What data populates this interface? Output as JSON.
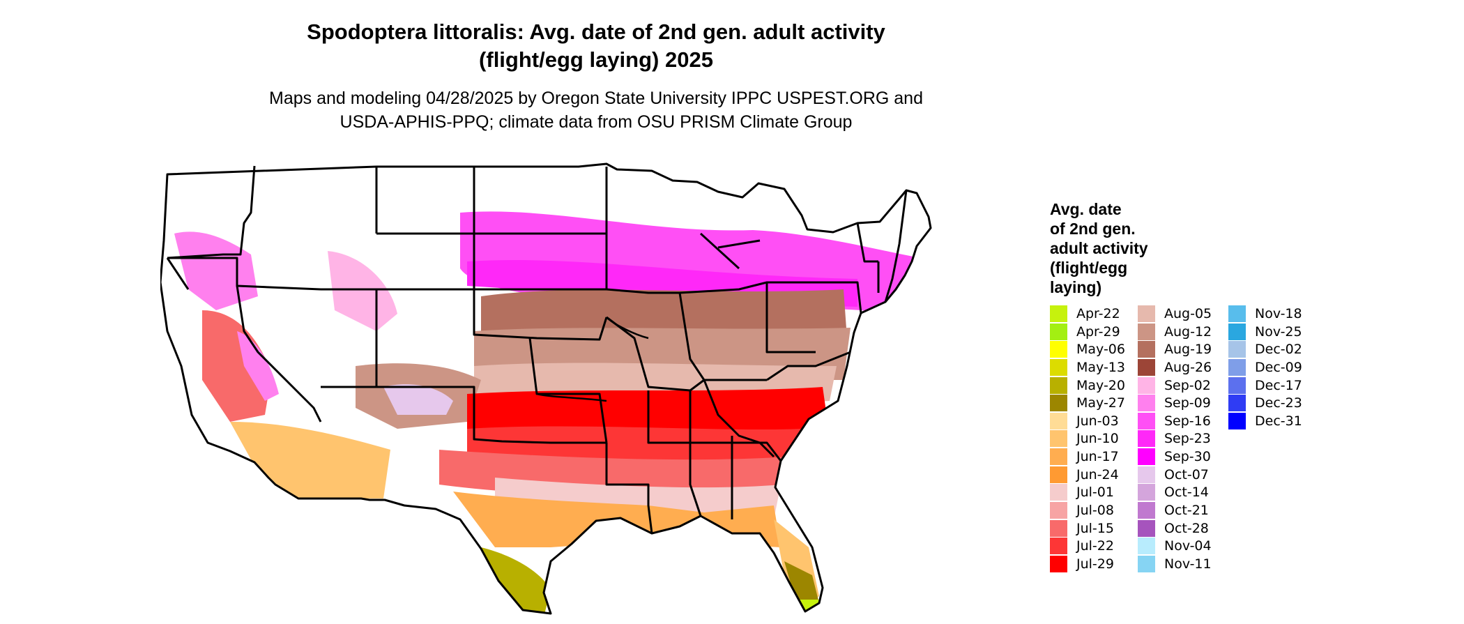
{
  "title": {
    "line1": "Spodoptera littoralis: Avg. date of 2nd gen. adult activity",
    "line2": "(flight/egg laying) 2025"
  },
  "subtitle": {
    "line1": "Maps and modeling 04/28/2025 by Oregon State University IPPC USPEST.ORG and",
    "line2": "USDA-APHIS-PPQ; climate data from OSU PRISM Climate Group"
  },
  "legend": {
    "title_lines": [
      "Avg. date",
      "of 2nd gen.",
      "adult activity",
      "(flight/egg",
      "laying)"
    ],
    "columns": [
      [
        {
          "label": "Apr-22",
          "color": "#c6f20d"
        },
        {
          "label": "Apr-29",
          "color": "#a3ef12"
        },
        {
          "label": "May-06",
          "color": "#ffff00"
        },
        {
          "label": "May-13",
          "color": "#dcdc00"
        },
        {
          "label": "May-20",
          "color": "#b8b000"
        },
        {
          "label": "May-27",
          "color": "#9c8600"
        },
        {
          "label": "Jun-03",
          "color": "#ffdc96"
        },
        {
          "label": "Jun-10",
          "color": "#ffc46e"
        },
        {
          "label": "Jun-17",
          "color": "#ffad50"
        },
        {
          "label": "Jun-24",
          "color": "#ff9a32"
        },
        {
          "label": "Jul-01",
          "color": "#f5cccc"
        },
        {
          "label": "Jul-08",
          "color": "#f7a4a4"
        },
        {
          "label": "Jul-15",
          "color": "#f86a6a"
        },
        {
          "label": "Jul-22",
          "color": "#fd3636"
        },
        {
          "label": "Jul-29",
          "color": "#ff0000"
        }
      ],
      [
        {
          "label": "Aug-05",
          "color": "#e6b9ad"
        },
        {
          "label": "Aug-12",
          "color": "#cc9585"
        },
        {
          "label": "Aug-19",
          "color": "#b4705f"
        },
        {
          "label": "Aug-26",
          "color": "#9c4537"
        },
        {
          "label": "Sep-02",
          "color": "#ffb4e6"
        },
        {
          "label": "Sep-09",
          "color": "#ff80ee"
        },
        {
          "label": "Sep-16",
          "color": "#ff4ff5"
        },
        {
          "label": "Sep-23",
          "color": "#ff28f8"
        },
        {
          "label": "Sep-30",
          "color": "#ff00ff"
        },
        {
          "label": "Oct-07",
          "color": "#e6c8ec"
        },
        {
          "label": "Oct-14",
          "color": "#d4a5dc"
        },
        {
          "label": "Oct-21",
          "color": "#c079cf"
        },
        {
          "label": "Oct-28",
          "color": "#a654bd"
        },
        {
          "label": "Nov-04",
          "color": "#b8ecfd"
        },
        {
          "label": "Nov-11",
          "color": "#86d4f3"
        }
      ],
      [
        {
          "label": "Nov-18",
          "color": "#58bdec"
        },
        {
          "label": "Nov-25",
          "color": "#2aa7e0"
        },
        {
          "label": "Dec-02",
          "color": "#a6c4e8"
        },
        {
          "label": "Dec-09",
          "color": "#7f9ee8"
        },
        {
          "label": "Dec-17",
          "color": "#5c70ee"
        },
        {
          "label": "Dec-23",
          "color": "#2f3cf4"
        },
        {
          "label": "Dec-31",
          "color": "#0000ff"
        }
      ]
    ]
  }
}
